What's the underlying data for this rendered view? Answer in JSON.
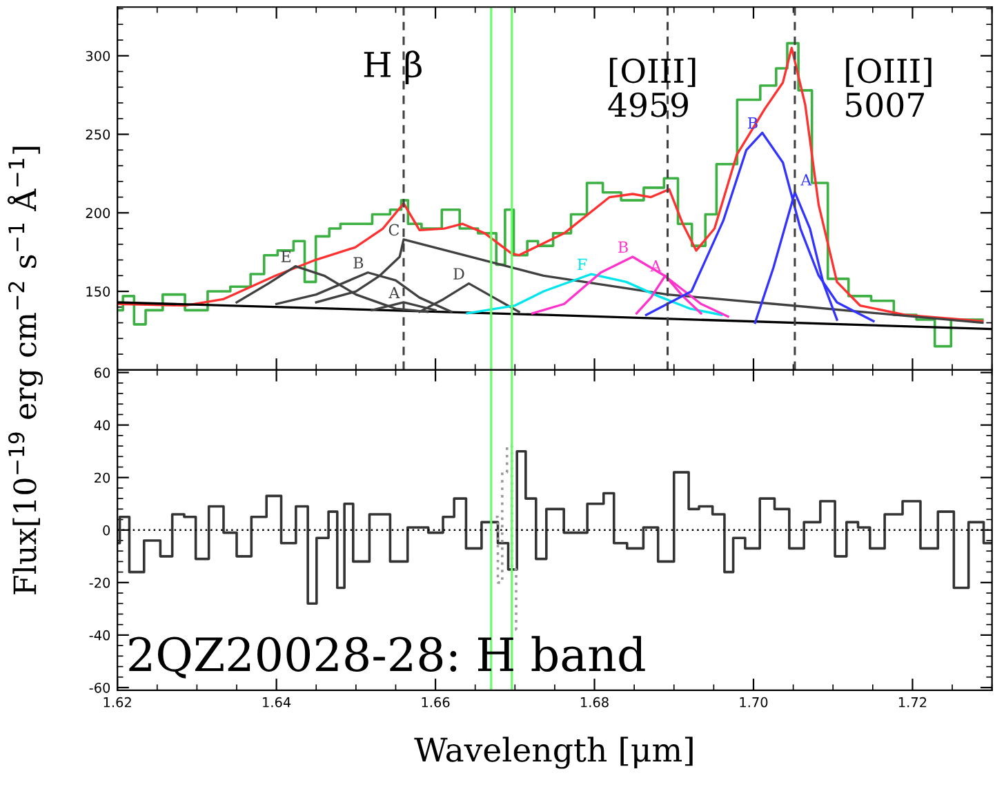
{
  "chart_data": [
    {
      "type": "line",
      "ylabel": "Flux[10$^{−19}$ erg cm$^{−2}$ s$^{−1}$ Å$^{−1}$]",
      "xlim": [
        1.62,
        1.73
      ],
      "ylim": [
        100,
        331
      ],
      "yticks": [
        150,
        200,
        250,
        300
      ],
      "tick_labels": "y",
      "annotations": [
        "H β",
        "[OIII]\n4959",
        "[OIII]\n5007"
      ],
      "ref_lines": [
        {
          "axis": "x",
          "value": 1.656,
          "color": "#404040",
          "line_style": "dashed"
        },
        {
          "axis": "x",
          "value": 1.6892,
          "color": "#404040",
          "line_style": "dashed"
        },
        {
          "axis": "x",
          "value": 1.7052,
          "color": "#404040",
          "line_style": "dashed"
        },
        {
          "axis": "x",
          "value": 1.667,
          "color": "#66ff66",
          "line_style": "solid"
        },
        {
          "axis": "x",
          "value": 1.6696,
          "color": "#66ff66",
          "line_style": "solid"
        }
      ],
      "series": [
        {
          "type": "step",
          "color": "#3cb043",
          "x": [
            1.62,
            1.6214,
            1.6228,
            1.6243,
            1.6271,
            1.6299,
            1.6328,
            1.6356,
            1.6379,
            1.639,
            1.6413,
            1.643,
            1.6441,
            1.6458,
            1.6475,
            1.6486,
            1.6509,
            1.6532,
            1.6554,
            1.656,
            1.6571,
            1.6594,
            1.6622,
            1.6639,
            1.6668,
            1.6685,
            1.669,
            1.6707,
            1.6724,
            1.6734,
            1.6762,
            1.6779,
            1.6802,
            1.6819,
            1.6848,
            1.6876,
            1.6899,
            1.6911,
            1.6934,
            1.6945,
            1.6962,
            1.6997,
            1.702,
            1.7037,
            1.7048,
            1.7065,
            1.7082,
            1.7105,
            1.7134,
            1.7162,
            1.7191,
            1.7219,
            1.7237,
            1.726,
            1.7288
          ],
          "values": [
            138,
            147,
            129,
            138,
            148,
            138,
            150,
            153,
            161,
            173,
            176,
            182,
            156,
            185,
            190,
            193,
            193,
            199,
            202,
            208,
            193,
            190,
            202,
            190,
            187,
            167,
            202,
            173,
            182,
            179,
            187,
            199,
            219,
            213,
            208,
            216,
            222,
            193,
            179,
            199,
            231,
            272,
            281,
            292,
            308,
            278,
            219,
            158,
            147,
            144,
            135,
            132,
            115,
            132,
            132
          ]
        },
        {
          "color": "#ff3030",
          "x": [
            1.62,
            1.6285,
            1.6333,
            1.6399,
            1.6449,
            1.6499,
            1.6534,
            1.656,
            1.658,
            1.6611,
            1.6634,
            1.6662,
            1.6696,
            1.6705,
            1.6762,
            1.6819,
            1.6848,
            1.6871,
            1.6894,
            1.6911,
            1.6928,
            1.6951,
            1.6979,
            1.7014,
            1.7037,
            1.7048,
            1.7065,
            1.7082,
            1.7105,
            1.7134,
            1.7191,
            1.7288
          ],
          "values": [
            142,
            141,
            145,
            160,
            170,
            178,
            190,
            206,
            189,
            190,
            193,
            187,
            174,
            173,
            187,
            210,
            212,
            210,
            215,
            193,
            176,
            190,
            237,
            266,
            283,
            305,
            269,
            205,
            156,
            141,
            135,
            131
          ]
        },
        {
          "color": "#000000",
          "x": [
            1.62,
            1.674,
            1.73
          ],
          "values": [
            143,
            135,
            126
          ]
        },
        {
          "name": "E",
          "color": "#404040",
          "x": [
            1.635,
            1.639,
            1.6424,
            1.646,
            1.65,
            1.655,
            1.659
          ],
          "values": [
            143,
            155,
            166,
            160,
            148,
            139,
            137
          ]
        },
        {
          "name": "B",
          "color": "#404040",
          "x": [
            1.64,
            1.645,
            1.6515,
            1.655,
            1.658,
            1.662
          ],
          "values": [
            142,
            148,
            162,
            157,
            146,
            137
          ]
        },
        {
          "name": "A",
          "color": "#404040",
          "x": [
            1.652,
            1.656,
            1.66
          ],
          "values": [
            138,
            143,
            138
          ]
        },
        {
          "name": "C",
          "color": "#404040",
          "x": [
            1.645,
            1.65,
            1.653,
            1.6555,
            1.656,
            1.6705,
            1.6736,
            1.6892,
            1.7048,
            1.72,
            1.7288
          ],
          "values": [
            143,
            150,
            160,
            172,
            183,
            164,
            160,
            148,
            141,
            134,
            130
          ]
        },
        {
          "name": "D",
          "color": "#404040",
          "x": [
            1.658,
            1.661,
            1.6642,
            1.667,
            1.6705
          ],
          "values": [
            137,
            145,
            155,
            147,
            137
          ]
        },
        {
          "name": "F",
          "color": "#00e5ee",
          "x": [
            1.664,
            1.67,
            1.6736,
            1.6796,
            1.684,
            1.688,
            1.692,
            1.696
          ],
          "values": [
            136,
            141,
            150,
            161,
            156,
            147,
            139,
            135
          ]
        },
        {
          "name": "B",
          "color": "#ff33cc",
          "x": [
            1.6722,
            1.6762,
            1.6808,
            1.6848,
            1.6888,
            1.6934,
            1.6968
          ],
          "values": [
            136,
            142,
            162,
            172,
            160,
            142,
            134
          ]
        },
        {
          "name": "A",
          "color": "#ff33cc",
          "x": [
            1.6853,
            1.6871,
            1.6889,
            1.6911,
            1.6934
          ],
          "values": [
            136,
            146,
            160,
            147,
            136
          ]
        },
        {
          "name": "B",
          "color": "#3333ff",
          "x": [
            1.6865,
            1.6922,
            1.6962,
            1.6991,
            1.7011,
            1.7037,
            1.7059,
            1.7082,
            1.7105,
            1.7151
          ],
          "values": [
            135,
            150,
            195,
            240,
            251,
            232,
            190,
            160,
            143,
            131
          ]
        },
        {
          "name": "A",
          "color": "#3333ff",
          "x": [
            1.7002,
            1.7025,
            1.7052,
            1.7071,
            1.7088,
            1.7105
          ],
          "values": [
            130,
            165,
            213,
            190,
            155,
            132
          ]
        }
      ]
    },
    {
      "type": "line",
      "xlabel": "Wavelength [μm]",
      "xlim": [
        1.62,
        1.73
      ],
      "ylim": [
        -61,
        61
      ],
      "xticks": [
        {
          "value": 1.62,
          "label": "1.62"
        },
        {
          "value": 1.64,
          "label": "1.64"
        },
        {
          "value": 1.66,
          "label": "1.66"
        },
        {
          "value": 1.68,
          "label": "1.68"
        },
        {
          "value": 1.7,
          "label": "1.70"
        },
        {
          "value": 1.72,
          "label": "1.72"
        }
      ],
      "yticks": [
        -60,
        -40,
        -20,
        0,
        20,
        40,
        60
      ],
      "annotations": [
        "2QZ20028-28: H band"
      ],
      "ref_lines": [
        {
          "axis": "y",
          "value": 0,
          "color": "#000000",
          "line_style": "dotted"
        },
        {
          "axis": "x",
          "value": 1.667,
          "color": "#66ff66",
          "line_style": "solid"
        },
        {
          "axis": "x",
          "value": 1.6696,
          "color": "#66ff66",
          "line_style": "solid"
        }
      ],
      "series": [
        {
          "type": "step",
          "color": "#333333",
          "x": [
            1.62,
            1.6206,
            1.6224,
            1.6243,
            1.6265,
            1.6273,
            1.6295,
            1.6302,
            1.6328,
            1.6339,
            1.6361,
            1.6376,
            1.6399,
            1.6413,
            1.6436,
            1.6443,
            1.6458,
            1.6473,
            1.648,
            1.6491,
            1.6502,
            1.6532,
            1.6554,
            1.6576,
            1.6606,
            1.6613,
            1.6634,
            1.6643,
            1.6673,
            1.6684,
            1.6699,
            1.6706,
            1.6721,
            1.6732,
            1.6747,
            1.6776,
            1.6806,
            1.6817,
            1.6832,
            1.685,
            1.6873,
            1.6887,
            1.6913,
            1.6924,
            1.6939,
            1.6958,
            1.6969,
            1.698,
            1.6999,
            1.7017,
            1.7036,
            1.7054,
            1.7073,
            1.7095,
            1.711,
            1.7124,
            1.7139,
            1.7154,
            1.7176,
            1.7199,
            1.7221,
            1.7243,
            1.7261,
            1.728,
            1.7299
          ],
          "values": [
            -5,
            5,
            -16,
            -4,
            -10,
            6,
            5,
            -11,
            9,
            -1,
            -10,
            5,
            13,
            -5,
            9,
            -28,
            -3,
            7,
            -22,
            10,
            -12,
            6,
            -12,
            1,
            -1,
            5,
            12,
            -7,
            3,
            -5,
            -15,
            30,
            12,
            -11,
            8,
            -1,
            10,
            14,
            -5,
            -7,
            1,
            -12,
            22,
            8,
            9,
            6,
            -16,
            -3,
            -7,
            12,
            8,
            -7,
            3,
            11,
            -10,
            3,
            1,
            -7,
            6,
            11,
            -7,
            7,
            -22,
            3,
            -5
          ]
        },
        {
          "type": "step",
          "color": "#999999",
          "line_style": "dotted",
          "x": [
            1.6676,
            1.6681,
            1.6687,
            1.6693,
            1.6699,
            1.6704
          ],
          "values": [
            5,
            -20,
            22,
            32,
            -15,
            -38
          ]
        }
      ]
    }
  ]
}
